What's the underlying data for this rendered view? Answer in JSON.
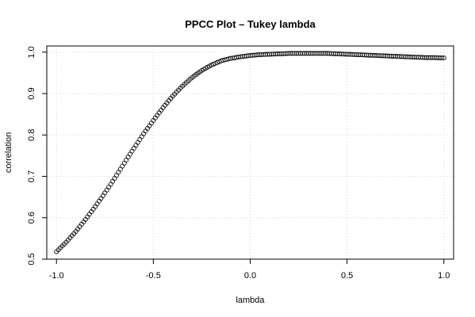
{
  "chart_data": {
    "type": "scatter",
    "title": "PPCC Plot – Tukey lambda",
    "xlabel": "lambda",
    "ylabel": "correlation",
    "xlim": [
      -1.05,
      1.05
    ],
    "ylim": [
      0.5,
      1.015
    ],
    "x_ticks": [
      -1.0,
      -0.5,
      0.0,
      0.5,
      1.0
    ],
    "x_tick_labels": [
      "-1.0",
      "-0.5",
      "0.0",
      "0.5",
      "1.0"
    ],
    "y_ticks": [
      0.5,
      0.6,
      0.7,
      0.8,
      0.9,
      1.0
    ],
    "y_tick_labels": [
      "0.5",
      "0.6",
      "0.7",
      "0.8",
      "0.9",
      "1.0"
    ],
    "grid": true,
    "marker": "open-circle",
    "series": [
      {
        "x": [
          -1.0,
          -0.95,
          -0.9,
          -0.85,
          -0.8,
          -0.75,
          -0.7,
          -0.65,
          -0.6,
          -0.55,
          -0.5,
          -0.45,
          -0.4,
          -0.35,
          -0.3,
          -0.25,
          -0.2,
          -0.15,
          -0.1,
          -0.05,
          0.0,
          0.05,
          0.1,
          0.15,
          0.2,
          0.25,
          0.3,
          0.35,
          0.4,
          0.45,
          0.5,
          0.55,
          0.6,
          0.65,
          0.7,
          0.75,
          0.8,
          0.85,
          0.9,
          0.95,
          1.0
        ],
        "y": [
          0.518,
          0.541,
          0.567,
          0.596,
          0.627,
          0.66,
          0.695,
          0.732,
          0.768,
          0.803,
          0.835,
          0.866,
          0.894,
          0.918,
          0.939,
          0.956,
          0.969,
          0.979,
          0.985,
          0.989,
          0.992,
          0.994,
          0.995,
          0.996,
          0.997,
          0.997,
          0.997,
          0.997,
          0.997,
          0.996,
          0.995,
          0.994,
          0.993,
          0.992,
          0.991,
          0.99,
          0.989,
          0.988,
          0.987,
          0.987,
          0.986
        ]
      }
    ]
  }
}
